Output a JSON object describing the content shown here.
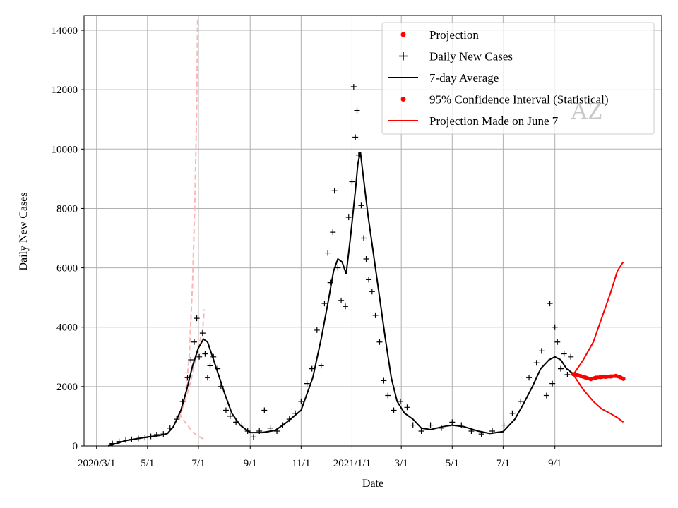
{
  "chart_data": {
    "type": "line",
    "xlabel": "Date",
    "ylabel": "Daily New Cases",
    "watermark": "AZ",
    "xlim": [
      "2020-02-15",
      "2022-01-07"
    ],
    "ylim": [
      0,
      14500
    ],
    "x_ticks": [
      {
        "date": "2020-03-01",
        "label": "2020/3/1"
      },
      {
        "date": "2020-05-01",
        "label": "5/1"
      },
      {
        "date": "2020-07-01",
        "label": "7/1"
      },
      {
        "date": "2020-09-01",
        "label": "9/1"
      },
      {
        "date": "2020-11-01",
        "label": "11/1"
      },
      {
        "date": "2021-01-01",
        "label": "2021/1/1"
      },
      {
        "date": "2021-03-01",
        "label": "3/1"
      },
      {
        "date": "2021-05-01",
        "label": "5/1"
      },
      {
        "date": "2021-07-01",
        "label": "7/1"
      },
      {
        "date": "2021-09-01",
        "label": "9/1"
      }
    ],
    "y_ticks": [
      0,
      2000,
      4000,
      6000,
      8000,
      10000,
      12000,
      14000
    ],
    "grid": true,
    "legend_position": "top-right",
    "legend": [
      {
        "label": "Projection",
        "marker": "dot",
        "color": "#ff0000"
      },
      {
        "label": "Daily New Cases",
        "marker": "plus",
        "color": "#000000"
      },
      {
        "label": "7-day Average",
        "marker": "line",
        "color": "#000000"
      },
      {
        "label": "95% Confidence Interval (Statistical)",
        "marker": "dot",
        "color": "#ff0000"
      },
      {
        "label": "Projection Made on June 7",
        "marker": "line",
        "color": "#ff0000"
      }
    ],
    "seven_day_average": {
      "color": "#000000",
      "points": [
        [
          "2020-03-15",
          0
        ],
        [
          "2020-03-25",
          80
        ],
        [
          "2020-04-05",
          180
        ],
        [
          "2020-04-20",
          250
        ],
        [
          "2020-05-01",
          300
        ],
        [
          "2020-05-15",
          350
        ],
        [
          "2020-05-25",
          420
        ],
        [
          "2020-06-01",
          650
        ],
        [
          "2020-06-10",
          1200
        ],
        [
          "2020-06-17",
          1900
        ],
        [
          "2020-06-24",
          2700
        ],
        [
          "2020-07-01",
          3300
        ],
        [
          "2020-07-07",
          3600
        ],
        [
          "2020-07-12",
          3500
        ],
        [
          "2020-07-18",
          3000
        ],
        [
          "2020-07-25",
          2400
        ],
        [
          "2020-08-01",
          1800
        ],
        [
          "2020-08-10",
          1100
        ],
        [
          "2020-08-20",
          700
        ],
        [
          "2020-09-01",
          450
        ],
        [
          "2020-09-15",
          450
        ],
        [
          "2020-10-01",
          520
        ],
        [
          "2020-10-15",
          800
        ],
        [
          "2020-11-01",
          1200
        ],
        [
          "2020-11-15",
          2300
        ],
        [
          "2020-11-25",
          3600
        ],
        [
          "2020-12-03",
          4800
        ],
        [
          "2020-12-10",
          5900
        ],
        [
          "2020-12-15",
          6300
        ],
        [
          "2020-12-20",
          6200
        ],
        [
          "2020-12-25",
          5800
        ],
        [
          "2020-12-30",
          7000
        ],
        [
          "2021-01-05",
          8600
        ],
        [
          "2021-01-08",
          9500
        ],
        [
          "2021-01-11",
          9900
        ],
        [
          "2021-01-14",
          9200
        ],
        [
          "2021-01-20",
          7800
        ],
        [
          "2021-01-27",
          6400
        ],
        [
          "2021-02-03",
          5000
        ],
        [
          "2021-02-10",
          3600
        ],
        [
          "2021-02-17",
          2300
        ],
        [
          "2021-02-24",
          1500
        ],
        [
          "2021-03-05",
          1100
        ],
        [
          "2021-03-15",
          900
        ],
        [
          "2021-03-25",
          600
        ],
        [
          "2021-04-05",
          550
        ],
        [
          "2021-04-20",
          650
        ],
        [
          "2021-05-01",
          700
        ],
        [
          "2021-05-15",
          650
        ],
        [
          "2021-06-01",
          500
        ],
        [
          "2021-06-15",
          420
        ],
        [
          "2021-07-01",
          480
        ],
        [
          "2021-07-15",
          900
        ],
        [
          "2021-07-25",
          1400
        ],
        [
          "2021-08-05",
          2000
        ],
        [
          "2021-08-15",
          2600
        ],
        [
          "2021-08-25",
          2900
        ],
        [
          "2021-09-01",
          3000
        ],
        [
          "2021-09-08",
          2900
        ],
        [
          "2021-09-15",
          2600
        ],
        [
          "2021-09-22",
          2450
        ]
      ]
    },
    "daily_new_cases": {
      "color": "#000000",
      "points": [
        [
          "2020-03-20",
          80
        ],
        [
          "2020-03-28",
          150
        ],
        [
          "2020-04-05",
          200
        ],
        [
          "2020-04-12",
          220
        ],
        [
          "2020-04-20",
          250
        ],
        [
          "2020-04-28",
          280
        ],
        [
          "2020-05-05",
          320
        ],
        [
          "2020-05-12",
          380
        ],
        [
          "2020-05-20",
          400
        ],
        [
          "2020-05-28",
          600
        ],
        [
          "2020-06-05",
          900
        ],
        [
          "2020-06-12",
          1500
        ],
        [
          "2020-06-18",
          2300
        ],
        [
          "2020-06-22",
          2900
        ],
        [
          "2020-06-26",
          3500
        ],
        [
          "2020-06-29",
          4300
        ],
        [
          "2020-07-02",
          3000
        ],
        [
          "2020-07-06",
          3800
        ],
        [
          "2020-07-09",
          3100
        ],
        [
          "2020-07-12",
          2300
        ],
        [
          "2020-07-15",
          2700
        ],
        [
          "2020-07-19",
          3000
        ],
        [
          "2020-07-24",
          2600
        ],
        [
          "2020-07-28",
          2000
        ],
        [
          "2020-08-03",
          1200
        ],
        [
          "2020-08-08",
          1000
        ],
        [
          "2020-08-15",
          800
        ],
        [
          "2020-08-22",
          700
        ],
        [
          "2020-08-29",
          500
        ],
        [
          "2020-09-05",
          300
        ],
        [
          "2020-09-12",
          500
        ],
        [
          "2020-09-18",
          1200
        ],
        [
          "2020-09-25",
          600
        ],
        [
          "2020-10-03",
          500
        ],
        [
          "2020-10-10",
          700
        ],
        [
          "2020-10-18",
          900
        ],
        [
          "2020-10-25",
          1100
        ],
        [
          "2020-11-01",
          1500
        ],
        [
          "2020-11-08",
          2100
        ],
        [
          "2020-11-14",
          2600
        ],
        [
          "2020-11-20",
          3900
        ],
        [
          "2020-11-25",
          2700
        ],
        [
          "2020-11-29",
          4800
        ],
        [
          "2020-12-03",
          6500
        ],
        [
          "2020-12-06",
          5500
        ],
        [
          "2020-12-09",
          7200
        ],
        [
          "2020-12-11",
          8600
        ],
        [
          "2020-12-15",
          6000
        ],
        [
          "2020-12-19",
          4900
        ],
        [
          "2020-12-24",
          4700
        ],
        [
          "2020-12-28",
          7700
        ],
        [
          "2021-01-01",
          8900
        ],
        [
          "2021-01-03",
          12100
        ],
        [
          "2021-01-05",
          10400
        ],
        [
          "2021-01-07",
          11300
        ],
        [
          "2021-01-09",
          9800
        ],
        [
          "2021-01-12",
          8100
        ],
        [
          "2021-01-15",
          7000
        ],
        [
          "2021-01-18",
          6300
        ],
        [
          "2021-01-21",
          5600
        ],
        [
          "2021-01-25",
          5200
        ],
        [
          "2021-01-29",
          4400
        ],
        [
          "2021-02-03",
          3500
        ],
        [
          "2021-02-08",
          2200
        ],
        [
          "2021-02-13",
          1700
        ],
        [
          "2021-02-20",
          1200
        ],
        [
          "2021-02-28",
          1500
        ],
        [
          "2021-03-08",
          1300
        ],
        [
          "2021-03-15",
          700
        ],
        [
          "2021-03-25",
          500
        ],
        [
          "2021-04-05",
          700
        ],
        [
          "2021-04-18",
          600
        ],
        [
          "2021-05-01",
          800
        ],
        [
          "2021-05-12",
          700
        ],
        [
          "2021-05-24",
          500
        ],
        [
          "2021-06-05",
          400
        ],
        [
          "2021-06-18",
          500
        ],
        [
          "2021-07-02",
          700
        ],
        [
          "2021-07-12",
          1100
        ],
        [
          "2021-07-22",
          1500
        ],
        [
          "2021-08-01",
          2300
        ],
        [
          "2021-08-10",
          2800
        ],
        [
          "2021-08-16",
          3200
        ],
        [
          "2021-08-22",
          1700
        ],
        [
          "2021-08-26",
          4800
        ],
        [
          "2021-08-29",
          2100
        ],
        [
          "2021-09-01",
          4000
        ],
        [
          "2021-09-04",
          3500
        ],
        [
          "2021-09-08",
          2600
        ],
        [
          "2021-09-12",
          3100
        ],
        [
          "2021-09-16",
          2400
        ],
        [
          "2021-09-20",
          3000
        ]
      ]
    },
    "projection_june7": {
      "color": "#ffb3b3",
      "upper": [
        [
          "2020-06-08",
          900
        ],
        [
          "2020-06-15",
          1600
        ],
        [
          "2020-06-20",
          3000
        ],
        [
          "2020-06-24",
          5500
        ],
        [
          "2020-06-27",
          8500
        ],
        [
          "2020-06-29",
          11500
        ],
        [
          "2020-06-30",
          14400
        ]
      ],
      "central": [
        [
          "2020-06-08",
          1000
        ],
        [
          "2020-06-15",
          1500
        ],
        [
          "2020-06-22",
          2200
        ],
        [
          "2020-06-29",
          3100
        ],
        [
          "2020-07-06",
          3900
        ],
        [
          "2020-07-08",
          4600
        ]
      ],
      "lower": [
        [
          "2020-06-08",
          1100
        ],
        [
          "2020-06-15",
          800
        ],
        [
          "2020-06-22",
          550
        ],
        [
          "2020-06-29",
          350
        ],
        [
          "2020-07-06",
          250
        ],
        [
          "2020-07-08",
          200
        ]
      ]
    },
    "projection": {
      "color": "#ff0000",
      "points": [
        [
          "2021-09-23",
          2420
        ],
        [
          "2021-09-27",
          2400
        ],
        [
          "2021-10-02",
          2350
        ],
        [
          "2021-10-08",
          2300
        ],
        [
          "2021-10-14",
          2250
        ],
        [
          "2021-10-20",
          2300
        ],
        [
          "2021-10-26",
          2320
        ],
        [
          "2021-11-01",
          2330
        ],
        [
          "2021-11-07",
          2340
        ],
        [
          "2021-11-13",
          2360
        ],
        [
          "2021-11-18",
          2320
        ],
        [
          "2021-11-22",
          2260
        ]
      ]
    },
    "confidence_interval_95": {
      "color": "#ff0000",
      "upper": [
        [
          "2021-09-23",
          2400
        ],
        [
          "2021-10-05",
          2900
        ],
        [
          "2021-10-17",
          3500
        ],
        [
          "2021-10-27",
          4300
        ],
        [
          "2021-11-06",
          5100
        ],
        [
          "2021-11-15",
          5900
        ],
        [
          "2021-11-22",
          6200
        ]
      ],
      "lower": [
        [
          "2021-09-23",
          2400
        ],
        [
          "2021-10-05",
          1900
        ],
        [
          "2021-10-17",
          1500
        ],
        [
          "2021-10-27",
          1250
        ],
        [
          "2021-11-06",
          1100
        ],
        [
          "2021-11-15",
          950
        ],
        [
          "2021-11-22",
          800
        ]
      ]
    }
  }
}
